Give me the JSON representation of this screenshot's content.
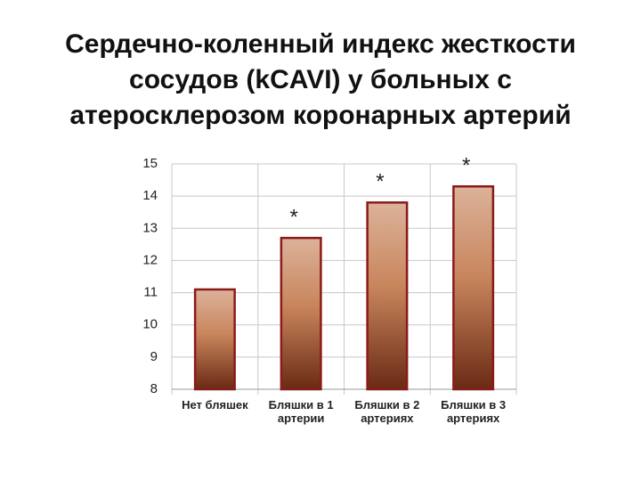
{
  "chart_data": {
    "type": "bar",
    "title": "Сердечно-коленный индекс жесткости сосудов (kCAVI) у больных с атеросклерозом коронарных артерий",
    "categories": [
      "Нет бляшек",
      "Бляшки в 1 артерии",
      "Бляшки в 2 артериях",
      "Бляшки в 3 артериях"
    ],
    "values": [
      11.1,
      12.7,
      13.8,
      14.3
    ],
    "annotations": [
      null,
      "*",
      "*",
      "*"
    ],
    "color": "#8b1a1a",
    "ylim": [
      8,
      15
    ],
    "yticks": [
      8,
      9,
      10,
      11,
      12,
      13,
      14,
      15
    ],
    "grid": true
  }
}
